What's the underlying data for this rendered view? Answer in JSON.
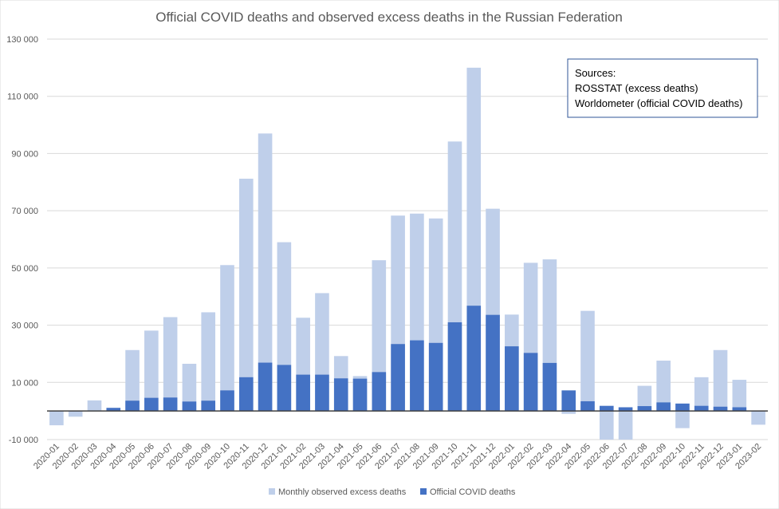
{
  "chart_data": {
    "type": "bar",
    "title": "Official COVID deaths and observed excess deaths in the Russian Federation",
    "xlabel": "",
    "ylabel": "",
    "ylim": [
      -10000,
      130000
    ],
    "yticks": [
      -10000,
      10000,
      30000,
      50000,
      70000,
      90000,
      110000,
      130000
    ],
    "ytick_labels": [
      "-10 000",
      "10 000",
      "30 000",
      "50 000",
      "70 000",
      "90 000",
      "110 000",
      "130 000"
    ],
    "grid": true,
    "legend_position": "bottom",
    "categories": [
      "2020-01",
      "2020-02",
      "2020-03",
      "2020-04",
      "2020-05",
      "2020-06",
      "2020-07",
      "2020-08",
      "2020-09",
      "2020-10",
      "2020-11",
      "2020-12",
      "2021-01",
      "2021-02",
      "2021-03",
      "2021-04",
      "2021-05",
      "2021-06",
      "2021-07",
      "2021-08",
      "2021-09",
      "2021-10",
      "2021-11",
      "2021-12",
      "2022-01",
      "2022-02",
      "2022-03",
      "2022-04",
      "2022-05",
      "2022-06",
      "2022-07",
      "2022-08",
      "2022-09",
      "2022-10",
      "2022-11",
      "2022-12",
      "2023-01",
      "2023-02"
    ],
    "series": [
      {
        "name": "Monthly observed excess deaths",
        "color": "#bfcfea",
        "values": [
          -5000,
          -2000,
          3700,
          0,
          21300,
          28100,
          32800,
          16500,
          34500,
          51000,
          81200,
          97000,
          59000,
          32600,
          41200,
          19200,
          12200,
          52700,
          68300,
          69000,
          67300,
          94200,
          120000,
          70700,
          33700,
          51800,
          53000,
          -1000,
          35000,
          -10000,
          -10000,
          8800,
          17600,
          -6000,
          11800,
          21300,
          10900,
          -4800
        ]
      },
      {
        "name": "Official COVID deaths",
        "color": "#4472c4",
        "values": [
          0,
          0,
          0,
          1100,
          3600,
          4600,
          4700,
          3300,
          3600,
          7200,
          11800,
          16900,
          16100,
          12700,
          12700,
          11400,
          11300,
          13600,
          23400,
          24700,
          23800,
          31000,
          36800,
          33600,
          22600,
          20300,
          16800,
          7200,
          3400,
          1800,
          1300,
          1700,
          3000,
          2600,
          1800,
          1500,
          1300,
          0
        ]
      }
    ],
    "sources": {
      "heading": "Sources:",
      "line1": "ROSSTAT (excess deaths)",
      "line2": "Worldometer (official COVID deaths)"
    }
  }
}
